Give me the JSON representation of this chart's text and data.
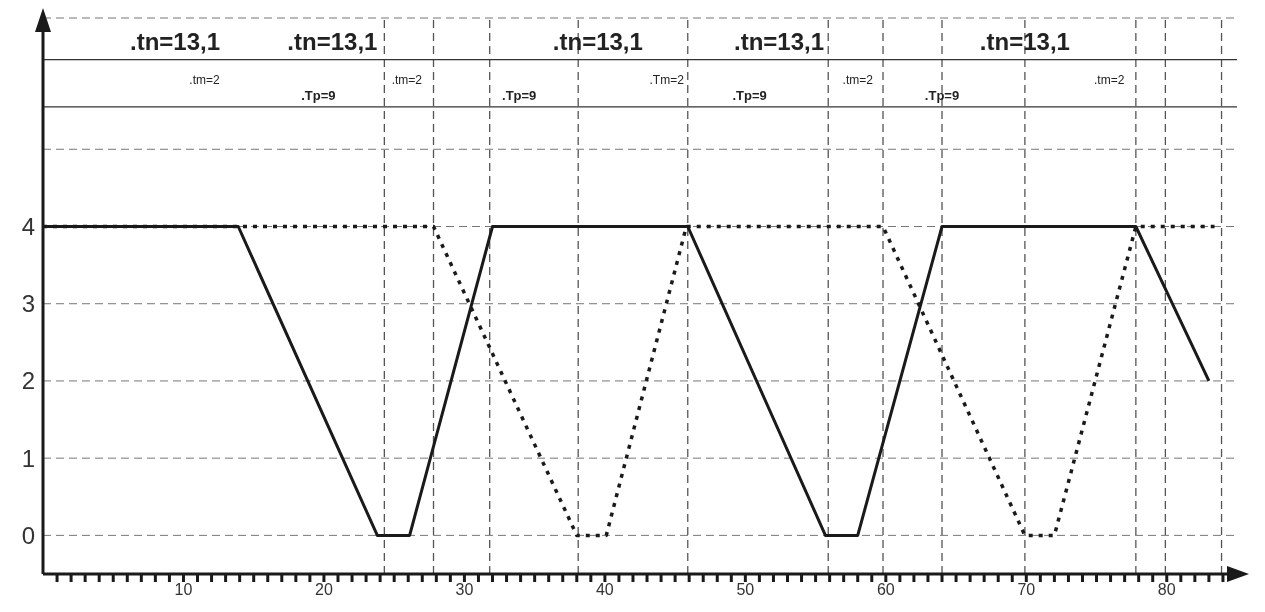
{
  "chart_data": {
    "type": "line",
    "x": [
      0,
      13.9,
      23.8,
      26.1,
      32.0,
      45.9,
      55.7,
      58.0,
      64.0,
      77.8,
      83.0
    ],
    "series": [
      {
        "color": "#1a1a1a",
        "line_style": "solid",
        "values": [
          4,
          4,
          0,
          0,
          4,
          4,
          0,
          0,
          4,
          4,
          2
        ]
      },
      {
        "color": "#1a1a1a",
        "line_style": "dotted",
        "x": [
          0,
          27.8,
          38.0,
          40.1,
          45.8,
          59.8,
          69.9,
          72.0,
          77.8,
          83.4
        ],
        "values": [
          4,
          4,
          0,
          0,
          4,
          4,
          0,
          0,
          4,
          4
        ]
      }
    ],
    "xlim": [
      0,
      85
    ],
    "xticks": [
      {
        "value": 1,
        "label": null
      },
      {
        "value": 2,
        "label": null
      },
      {
        "value": 3,
        "label": null
      },
      {
        "value": 4,
        "label": null
      },
      {
        "value": 5,
        "label": null
      },
      {
        "value": 6,
        "label": null
      },
      {
        "value": 7,
        "label": null
      },
      {
        "value": 8,
        "label": null
      },
      {
        "value": 9,
        "label": null
      },
      10,
      {
        "value": 11,
        "label": null
      },
      {
        "value": 12,
        "label": null
      },
      {
        "value": 13,
        "label": null
      },
      {
        "value": 14,
        "label": null
      },
      {
        "value": 15,
        "label": null
      },
      {
        "value": 16,
        "label": null
      },
      {
        "value": 17,
        "label": null
      },
      {
        "value": 18,
        "label": null
      },
      {
        "value": 19,
        "label": null
      },
      20,
      {
        "value": 21,
        "label": null
      },
      {
        "value": 22,
        "label": null
      },
      {
        "value": 23,
        "label": null
      },
      {
        "value": 24,
        "label": null
      },
      {
        "value": 25,
        "label": null
      },
      {
        "value": 26,
        "label": null
      },
      {
        "value": 27,
        "label": null
      },
      {
        "value": 28,
        "label": null
      },
      {
        "value": 29,
        "label": null
      },
      30,
      {
        "value": 31,
        "label": null
      },
      {
        "value": 32,
        "label": null
      },
      {
        "value": 33,
        "label": null
      },
      {
        "value": 34,
        "label": null
      },
      {
        "value": 35,
        "label": null
      },
      {
        "value": 36,
        "label": null
      },
      {
        "value": 37,
        "label": null
      },
      {
        "value": 38,
        "label": null
      },
      {
        "value": 39,
        "label": null
      },
      40,
      {
        "value": 41,
        "label": null
      },
      {
        "value": 42,
        "label": null
      },
      {
        "value": 43,
        "label": null
      },
      {
        "value": 44,
        "label": null
      },
      {
        "value": 45,
        "label": null
      },
      {
        "value": 46,
        "label": null
      },
      {
        "value": 47,
        "label": null
      },
      {
        "value": 48,
        "label": null
      },
      {
        "value": 49,
        "label": null
      },
      50,
      {
        "value": 51,
        "label": null
      },
      {
        "value": 52,
        "label": null
      },
      {
        "value": 53,
        "label": null
      },
      {
        "value": 54,
        "label": null
      },
      {
        "value": 55,
        "label": null
      },
      {
        "value": 56,
        "label": null
      },
      {
        "value": 57,
        "label": null
      },
      {
        "value": 58,
        "label": null
      },
      {
        "value": 59,
        "label": null
      },
      60,
      {
        "value": 61,
        "label": null
      },
      {
        "value": 62,
        "label": null
      },
      {
        "value": 63,
        "label": null
      },
      {
        "value": 64,
        "label": null
      },
      {
        "value": 65,
        "label": null
      },
      {
        "value": 66,
        "label": null
      },
      {
        "value": 67,
        "label": null
      },
      {
        "value": 68,
        "label": null
      },
      {
        "value": 69,
        "label": null
      },
      70,
      {
        "value": 71,
        "label": null
      },
      {
        "value": 72,
        "label": null
      },
      {
        "value": 73,
        "label": null
      },
      {
        "value": 74,
        "label": null
      },
      {
        "value": 75,
        "label": null
      },
      {
        "value": 76,
        "label": null
      },
      {
        "value": 77,
        "label": null
      },
      {
        "value": 78,
        "label": null
      },
      {
        "value": 79,
        "label": null
      },
      80,
      {
        "value": 81,
        "label": null
      },
      {
        "value": 82,
        "label": null
      },
      {
        "value": 83,
        "label": null
      },
      {
        "value": 84,
        "label": null
      }
    ],
    "ylim": [
      -0.5,
      6.7
    ],
    "yticks": [
      0,
      1,
      2,
      3,
      4,
      {
        "value": 5,
        "label": null
      }
    ],
    "grid": "y",
    "marker": "none",
    "ref_lines": [
      {
        "axis": "x",
        "value": 24.3,
        "line_style": "dashed",
        "color": "#555555"
      },
      {
        "axis": "x",
        "value": 27.8,
        "line_style": "dashed",
        "color": "#555555"
      },
      {
        "axis": "x",
        "value": 31.8,
        "line_style": "dashed",
        "color": "#555555"
      },
      {
        "axis": "x",
        "value": 38.1,
        "line_style": "dashed",
        "color": "#555555"
      },
      {
        "axis": "x",
        "value": 45.9,
        "line_style": "dashed",
        "color": "#555555"
      },
      {
        "axis": "x",
        "value": 55.9,
        "line_style": "dashed",
        "color": "#555555"
      },
      {
        "axis": "x",
        "value": 59.8,
        "line_style": "dashed",
        "color": "#555555"
      },
      {
        "axis": "x",
        "value": 64.0,
        "line_style": "dashed",
        "color": "#555555"
      },
      {
        "axis": "x",
        "value": 69.9,
        "line_style": "dashed",
        "color": "#555555"
      },
      {
        "axis": "x",
        "value": 77.8,
        "line_style": "dashed",
        "color": "#555555"
      },
      {
        "axis": "x",
        "value": 79.9,
        "line_style": "dashed",
        "color": "#555555"
      },
      {
        "axis": "x",
        "value": 83.9,
        "line_style": "dashed",
        "color": "#555555"
      },
      {
        "axis": "y",
        "value": 6.16,
        "line_style": "solid",
        "color": "#333333"
      },
      {
        "axis": "y",
        "value": 5.55,
        "line_style": "solid",
        "color": "#333333"
      }
    ],
    "annotations": [
      ".tn=13,1",
      ".tn=13,1",
      ".tn=13,1",
      ".tn=13,1",
      ".tn=13,1",
      ".tm=2",
      ".tm=2",
      ".Tm=2",
      ".tm=2",
      ".tm=2",
      ".Tp=9",
      ".Tp=9",
      ".Tp=9",
      ".Tp=9"
    ]
  }
}
